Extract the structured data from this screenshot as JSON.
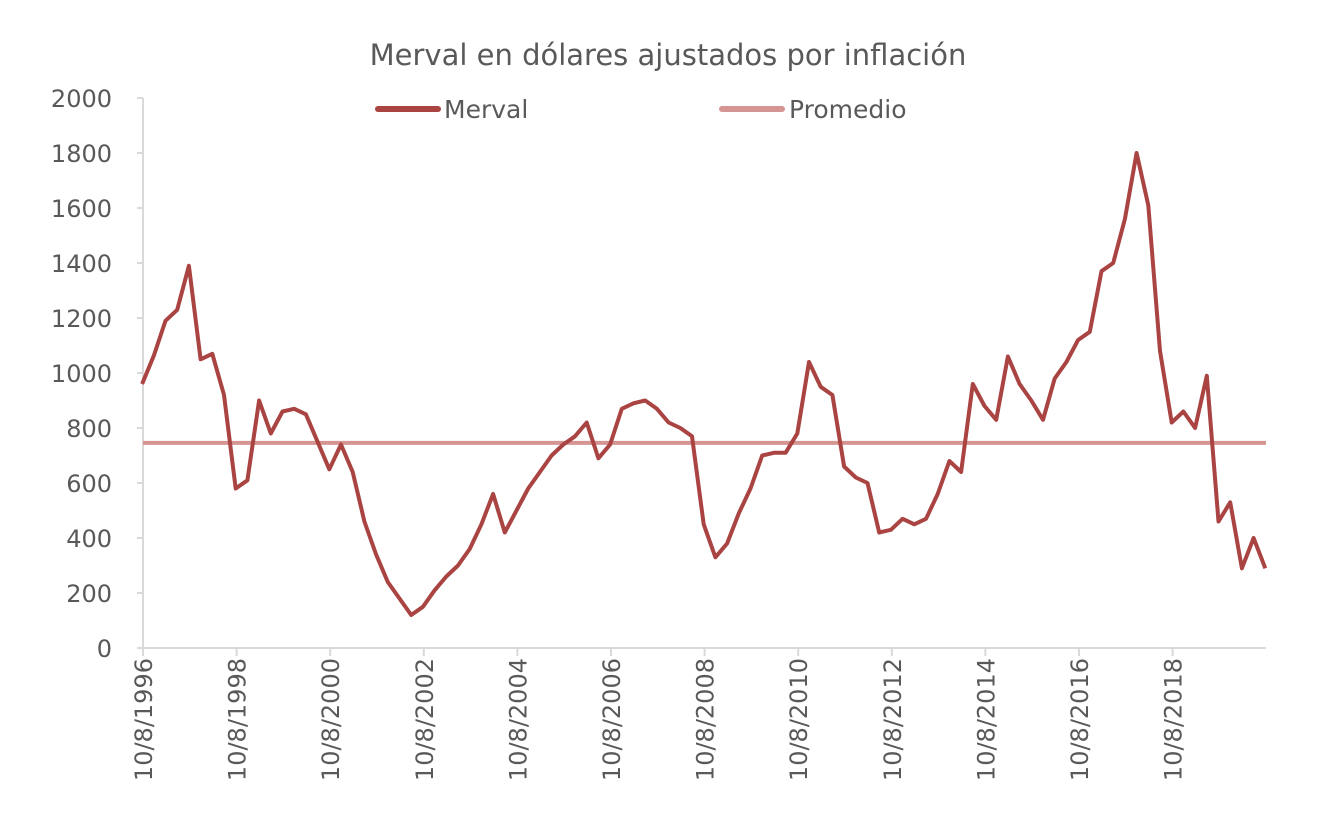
{
  "chart_data": {
    "type": "line",
    "title": "Merval en dólares ajustados por inflación",
    "xlabel": "",
    "ylabel": "",
    "ylim": [
      0,
      2000
    ],
    "yticks": [
      0,
      200,
      400,
      600,
      800,
      1000,
      1200,
      1400,
      1600,
      1800,
      2000
    ],
    "xlim": [
      "1996-10-08",
      "2020-10"
    ],
    "xtick_labels": [
      "10/8/1996",
      "10/8/1998",
      "10/8/2000",
      "10/8/2002",
      "10/8/2004",
      "10/8/2006",
      "10/8/2008",
      "10/8/2010",
      "10/8/2012",
      "10/8/2014",
      "10/8/2016",
      "10/8/2018"
    ],
    "grid": false,
    "legend_position": "top",
    "colors": {
      "Merval": "#A94442",
      "Promedio": "#D49593"
    },
    "series": [
      {
        "name": "Merval",
        "points": [
          [
            "1996-10",
            960
          ],
          [
            "1997-01",
            1063
          ],
          [
            "1997-04",
            1190
          ],
          [
            "1997-07",
            1230
          ],
          [
            "1997-10",
            1390
          ],
          [
            "1998-01",
            1050
          ],
          [
            "1998-04",
            1070
          ],
          [
            "1998-07",
            920
          ],
          [
            "1998-10",
            580
          ],
          [
            "1999-01",
            610
          ],
          [
            "1999-04",
            900
          ],
          [
            "1999-07",
            780
          ],
          [
            "1999-10",
            860
          ],
          [
            "2000-01",
            870
          ],
          [
            "2000-04",
            850
          ],
          [
            "2000-07",
            750
          ],
          [
            "2000-10",
            650
          ],
          [
            "2001-01",
            740
          ],
          [
            "2001-04",
            640
          ],
          [
            "2001-07",
            460
          ],
          [
            "2001-10",
            340
          ],
          [
            "2002-01",
            240
          ],
          [
            "2002-04",
            180
          ],
          [
            "2002-07",
            120
          ],
          [
            "2002-10",
            150
          ],
          [
            "2003-01",
            210
          ],
          [
            "2003-04",
            260
          ],
          [
            "2003-07",
            300
          ],
          [
            "2003-10",
            360
          ],
          [
            "2004-01",
            450
          ],
          [
            "2004-04",
            560
          ],
          [
            "2004-07",
            420
          ],
          [
            "2004-10",
            500
          ],
          [
            "2005-01",
            580
          ],
          [
            "2005-04",
            640
          ],
          [
            "2005-07",
            700
          ],
          [
            "2005-10",
            740
          ],
          [
            "2006-01",
            770
          ],
          [
            "2006-04",
            820
          ],
          [
            "2006-07",
            690
          ],
          [
            "2006-10",
            740
          ],
          [
            "2007-01",
            870
          ],
          [
            "2007-04",
            890
          ],
          [
            "2007-07",
            900
          ],
          [
            "2007-10",
            870
          ],
          [
            "2008-01",
            820
          ],
          [
            "2008-04",
            800
          ],
          [
            "2008-07",
            770
          ],
          [
            "2008-10",
            450
          ],
          [
            "2009-01",
            330
          ],
          [
            "2009-04",
            380
          ],
          [
            "2009-07",
            490
          ],
          [
            "2009-10",
            580
          ],
          [
            "2010-01",
            700
          ],
          [
            "2010-04",
            710
          ],
          [
            "2010-07",
            710
          ],
          [
            "2010-10",
            780
          ],
          [
            "2011-01",
            1040
          ],
          [
            "2011-04",
            950
          ],
          [
            "2011-07",
            920
          ],
          [
            "2011-10",
            660
          ],
          [
            "2012-01",
            620
          ],
          [
            "2012-04",
            600
          ],
          [
            "2012-07",
            420
          ],
          [
            "2012-10",
            430
          ],
          [
            "2013-01",
            470
          ],
          [
            "2013-04",
            450
          ],
          [
            "2013-07",
            470
          ],
          [
            "2013-10",
            560
          ],
          [
            "2014-01",
            680
          ],
          [
            "2014-04",
            640
          ],
          [
            "2014-07",
            960
          ],
          [
            "2014-10",
            880
          ],
          [
            "2015-01",
            830
          ],
          [
            "2015-04",
            1060
          ],
          [
            "2015-07",
            960
          ],
          [
            "2015-10",
            900
          ],
          [
            "2016-01",
            830
          ],
          [
            "2016-04",
            980
          ],
          [
            "2016-07",
            1040
          ],
          [
            "2016-10",
            1120
          ],
          [
            "2017-01",
            1150
          ],
          [
            "2017-04",
            1370
          ],
          [
            "2017-07",
            1400
          ],
          [
            "2017-10",
            1560
          ],
          [
            "2018-01",
            1800
          ],
          [
            "2018-04",
            1610
          ],
          [
            "2018-07",
            1080
          ],
          [
            "2018-10",
            820
          ],
          [
            "2019-01",
            860
          ],
          [
            "2019-04",
            800
          ],
          [
            "2019-07",
            990
          ],
          [
            "2019-10",
            460
          ],
          [
            "2020-01",
            530
          ],
          [
            "2020-04",
            290
          ],
          [
            "2020-07",
            400
          ],
          [
            "2020-10",
            290
          ]
        ]
      },
      {
        "name": "Promedio",
        "value": 746
      }
    ]
  }
}
